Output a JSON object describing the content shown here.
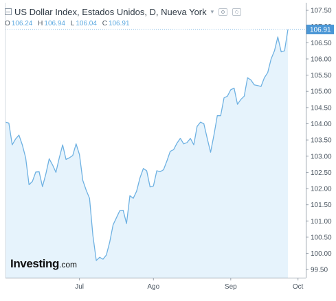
{
  "header": {
    "title": "US Dollar Index, Estados Unidos, D, Nueva York",
    "ohlc": [
      {
        "label": "O",
        "value": "106.24"
      },
      {
        "label": "H",
        "value": "106.94"
      },
      {
        "label": "L",
        "value": "106.04"
      },
      {
        "label": "C",
        "value": "106.91"
      }
    ]
  },
  "logo": {
    "main": "Investing",
    "domain": ".com"
  },
  "colors": {
    "line": "#6eb1e2",
    "fill": "#e6f3fc",
    "last_price_bg": "#4b97d6",
    "axis_text": "#4a5560",
    "grid": "#e7e7e7"
  },
  "icons": {
    "collapse": "collapse-icon",
    "dropdown": "chevron-down-icon",
    "tool1": "eye-icon",
    "tool2": "gear-icon"
  },
  "chart_data": {
    "type": "area",
    "title": "US Dollar Index, Estados Unidos, D, Nueva York",
    "xlabel": "",
    "ylabel": "",
    "grid": false,
    "ylim": [
      99.25,
      107.65
    ],
    "last_price": "106.91",
    "y_ticks": [
      "107.50",
      "107.00",
      "106.50",
      "106.00",
      "105.50",
      "105.00",
      "104.50",
      "104.00",
      "103.50",
      "103.00",
      "102.50",
      "102.00",
      "101.50",
      "101.00",
      "100.50",
      "100.00",
      "99.50"
    ],
    "x_ticks": [
      {
        "label": "Jul",
        "index": 22
      },
      {
        "label": "Ago",
        "index": 44
      },
      {
        "label": "Sep",
        "index": 67
      },
      {
        "label": "Oct",
        "index": 87
      }
    ],
    "series": [
      {
        "values": [
          104.05,
          104.02,
          103.35,
          103.53,
          103.65,
          103.35,
          102.95,
          102.12,
          102.22,
          102.51,
          102.52,
          102.06,
          102.45,
          102.92,
          102.73,
          102.5,
          102.95,
          103.35,
          102.9,
          102.95,
          103.02,
          103.38,
          103.05,
          102.25,
          101.95,
          101.7,
          100.55,
          99.78,
          99.88,
          99.82,
          99.95,
          100.35,
          100.88,
          101.1,
          101.32,
          101.33,
          100.92,
          101.78,
          101.7,
          101.92,
          102.33,
          102.62,
          102.55,
          102.05,
          102.08,
          102.55,
          102.52,
          102.58,
          102.85,
          103.15,
          103.2,
          103.4,
          103.55,
          103.38,
          103.42,
          103.55,
          103.35,
          103.92,
          104.05,
          104.0,
          103.55,
          103.12,
          103.65,
          104.25,
          104.25,
          104.8,
          104.85,
          105.05,
          105.1,
          104.6,
          104.75,
          104.85,
          105.42,
          105.35,
          105.2,
          105.18,
          105.15,
          105.42,
          105.58,
          106.0,
          106.25,
          106.68,
          106.22,
          106.25,
          106.91
        ]
      }
    ]
  }
}
